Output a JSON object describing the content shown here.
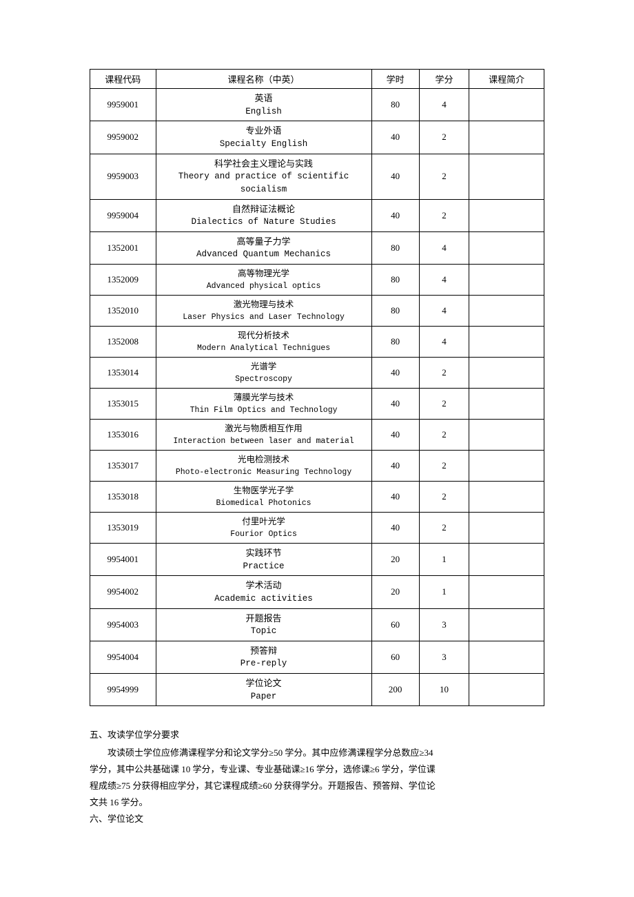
{
  "table": {
    "columns": [
      "课程代码",
      "课程名称（中英）",
      "学时",
      "学分",
      "课程简介"
    ],
    "column_widths_pct": [
      14.5,
      47.5,
      10.5,
      11,
      16.5
    ],
    "border_color": "#000000",
    "background_color": "#ffffff",
    "header_fontsize": 13,
    "cell_fontsize": 13,
    "en_fontfamily": "Courier New",
    "rows": [
      {
        "code": "9959001",
        "name_cn": "英语",
        "name_en": "English",
        "hours": "80",
        "credits": "4",
        "brief": "",
        "compact": false
      },
      {
        "code": "9959002",
        "name_cn": "专业外语",
        "name_en": "Specialty English",
        "hours": "40",
        "credits": "2",
        "brief": "",
        "compact": false
      },
      {
        "code": "9959003",
        "name_cn": "科学社会主义理论与实践",
        "name_en": "Theory and practice of scientific socialism",
        "hours": "40",
        "credits": "2",
        "brief": "",
        "compact": false,
        "en_wrap": true
      },
      {
        "code": "9959004",
        "name_cn": "自然辩证法概论",
        "name_en": "Dialectics of Nature Studies",
        "hours": "40",
        "credits": "2",
        "brief": "",
        "compact": false
      },
      {
        "code": "1352001",
        "name_cn": "高等量子力学",
        "name_en": "Advanced Quantum Mechanics",
        "hours": "80",
        "credits": "4",
        "brief": "",
        "compact": false
      },
      {
        "code": "1352009",
        "name_cn": "高等物理光学",
        "name_en": "Advanced physical optics",
        "hours": "80",
        "credits": "4",
        "brief": "",
        "compact": true
      },
      {
        "code": "1352010",
        "name_cn": "激光物理与技术",
        "name_en": "Laser Physics and Laser Technology",
        "hours": "80",
        "credits": "4",
        "brief": "",
        "compact": true
      },
      {
        "code": "1352008",
        "name_cn": "现代分析技术",
        "name_en": "Modern Analytical Technigues",
        "hours": "80",
        "credits": "4",
        "brief": "",
        "compact": true
      },
      {
        "code": "1353014",
        "name_cn": "光谱学",
        "name_en": "Spectroscopy",
        "hours": "40",
        "credits": "2",
        "brief": "",
        "compact": true
      },
      {
        "code": "1353015",
        "name_cn": "薄膜光学与技术",
        "name_en": "Thin Film Optics and Technology",
        "hours": "40",
        "credits": "2",
        "brief": "",
        "compact": true
      },
      {
        "code": "1353016",
        "name_cn": "激光与物质相互作用",
        "name_en": "Interaction between laser and material",
        "hours": "40",
        "credits": "2",
        "brief": "",
        "compact": true
      },
      {
        "code": "1353017",
        "name_cn": "光电检测技术",
        "name_en": "Photo-electronic Measuring Technology",
        "hours": "40",
        "credits": "2",
        "brief": "",
        "compact": true
      },
      {
        "code": "1353018",
        "name_cn": "生物医学光子学",
        "name_en": "Biomedical   Photonics",
        "hours": "40",
        "credits": "2",
        "brief": "",
        "compact": true
      },
      {
        "code": "1353019",
        "name_cn": "付里叶光学",
        "name_en": "Fourior Optics",
        "hours": "40",
        "credits": "2",
        "brief": "",
        "compact": true
      },
      {
        "code": "9954001",
        "name_cn": "实践环节",
        "name_en": "Practice",
        "hours": "20",
        "credits": "1",
        "brief": "",
        "compact": false
      },
      {
        "code": "9954002",
        "name_cn": "学术活动",
        "name_en": "Academic activities",
        "hours": "20",
        "credits": "1",
        "brief": "",
        "compact": false
      },
      {
        "code": "9954003",
        "name_cn": "开题报告",
        "name_en": "Topic",
        "hours": "60",
        "credits": "3",
        "brief": "",
        "compact": false
      },
      {
        "code": "9954004",
        "name_cn": "预答辩",
        "name_en": "Pre-reply",
        "hours": "60",
        "credits": "3",
        "brief": "",
        "compact": false
      },
      {
        "code": "9954999",
        "name_cn": "学位论文",
        "name_en": "Paper",
        "hours": "200",
        "credits": "10",
        "brief": "",
        "compact": false
      }
    ]
  },
  "section5": {
    "heading": "五、攻读学位学分要求",
    "paragraph_line1": "攻读硕士学位应修满课程学分和论文学分≥50 学分。其中应修满课程学分总数应≥34",
    "paragraph_line2": "学分，其中公共基础课 10 学分，专业课、专业基础课≥16 学分，选修课≥6 学分，学位课",
    "paragraph_line3": "程成绩≥75 分获得相应学分，其它课程成绩≥60 分获得学分。开题报告、预答辩、学位论",
    "paragraph_line4": "文共 16 学分。"
  },
  "section6": {
    "heading": "六、学位论文"
  },
  "typography": {
    "body_fontsize": 13,
    "line_height": 1.85,
    "text_color": "#000000",
    "font_family": "SimSun"
  }
}
